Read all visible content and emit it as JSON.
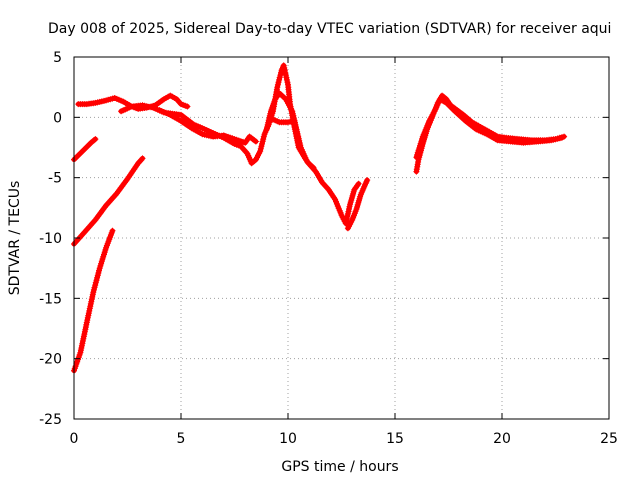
{
  "chart_data": {
    "type": "scatter",
    "title": "Day 008 of 2025, Sidereal Day-to-day VTEC variation (SDTVAR) for receiver aqui",
    "xlabel": "GPS time / hours",
    "ylabel": "SDTVAR / TECUs",
    "xlim": [
      0,
      25
    ],
    "ylim": [
      -25,
      5
    ],
    "xticks": [
      0,
      5,
      10,
      15,
      20,
      25
    ],
    "yticks": [
      -25,
      -20,
      -15,
      -10,
      -5,
      0,
      5
    ],
    "xtick_labels": [
      "0",
      "5",
      "10",
      "15",
      "20",
      "25"
    ],
    "ytick_labels": [
      "-25",
      "-20",
      "-15",
      "-10",
      "-5",
      "0",
      "5"
    ],
    "grid": true,
    "marker": "+",
    "series": [
      {
        "name": "SDTVAR",
        "color": "#ff0000",
        "tracks": [
          [
            [
              0,
              -3.5
            ],
            [
              0.4,
              -2.8
            ],
            [
              0.8,
              -2.1
            ],
            [
              1.0,
              -1.8
            ]
          ],
          [
            [
              0,
              -10.5
            ],
            [
              0.5,
              -9.5
            ],
            [
              1.0,
              -8.5
            ],
            [
              1.5,
              -7.3
            ],
            [
              2.0,
              -6.3
            ],
            [
              2.5,
              -5.1
            ],
            [
              3.0,
              -3.8
            ],
            [
              3.2,
              -3.4
            ]
          ],
          [
            [
              0,
              -21.0
            ],
            [
              0.3,
              -19.5
            ],
            [
              0.6,
              -17.0
            ],
            [
              0.9,
              -14.5
            ],
            [
              1.2,
              -12.5
            ],
            [
              1.5,
              -10.8
            ],
            [
              1.8,
              -9.4
            ]
          ],
          [
            [
              0.2,
              1.1
            ],
            [
              0.6,
              1.1
            ],
            [
              1.0,
              1.2
            ],
            [
              1.5,
              1.4
            ],
            [
              1.9,
              1.6
            ],
            [
              2.3,
              1.3
            ],
            [
              2.7,
              0.9
            ],
            [
              3.0,
              0.7
            ],
            [
              3.4,
              0.8
            ],
            [
              3.8,
              1.0
            ],
            [
              4.2,
              1.5
            ],
            [
              4.5,
              1.8
            ],
            [
              4.8,
              1.5
            ],
            [
              5.0,
              1.1
            ],
            [
              5.3,
              0.9
            ]
          ],
          [
            [
              2.2,
              0.5
            ],
            [
              2.7,
              0.9
            ],
            [
              3.2,
              1.0
            ],
            [
              3.7,
              0.8
            ],
            [
              4.2,
              0.4
            ],
            [
              4.6,
              0.3
            ],
            [
              5.0,
              0.2
            ],
            [
              5.6,
              -0.6
            ],
            [
              6.0,
              -0.9
            ],
            [
              6.5,
              -1.3
            ],
            [
              7.0,
              -1.7
            ],
            [
              7.5,
              -2.2
            ],
            [
              7.8,
              -2.4
            ],
            [
              8.1,
              -3.0
            ],
            [
              8.3,
              -3.8
            ],
            [
              8.5,
              -3.5
            ],
            [
              8.7,
              -2.8
            ],
            [
              8.9,
              -1.4
            ],
            [
              9.1,
              -0.6
            ],
            [
              9.3,
              0.5
            ],
            [
              9.5,
              2.5
            ],
            [
              9.7,
              3.9
            ],
            [
              9.8,
              4.3
            ],
            [
              10.0,
              2.7
            ],
            [
              10.1,
              1.1
            ],
            [
              10.3,
              -0.8
            ],
            [
              10.5,
              -2.5
            ],
            [
              10.8,
              -3.4
            ],
            [
              11.0,
              -3.9
            ],
            [
              11.3,
              -4.5
            ],
            [
              11.6,
              -5.4
            ],
            [
              11.9,
              -6.0
            ],
            [
              12.2,
              -6.8
            ],
            [
              12.5,
              -8.1
            ],
            [
              12.7,
              -8.8
            ],
            [
              12.9,
              -7.2
            ],
            [
              13.1,
              -6.0
            ],
            [
              13.3,
              -5.5
            ]
          ],
          [
            [
              9.0,
              -1.0
            ],
            [
              9.2,
              0.5
            ],
            [
              9.4,
              1.5
            ],
            [
              9.6,
              2.0
            ],
            [
              9.9,
              1.5
            ],
            [
              10.2,
              0.5
            ],
            [
              10.4,
              -1.0
            ],
            [
              10.6,
              -2.5
            ],
            [
              10.9,
              -3.7
            ],
            [
              11.2,
              -4.2
            ]
          ],
          [
            [
              4.0,
              0.6
            ],
            [
              4.5,
              0.2
            ],
            [
              5.0,
              -0.3
            ],
            [
              5.5,
              -0.9
            ],
            [
              6.0,
              -1.4
            ],
            [
              6.5,
              -1.6
            ],
            [
              7.0,
              -1.5
            ],
            [
              7.5,
              -1.8
            ],
            [
              8.0,
              -2.1
            ],
            [
              8.2,
              -1.6
            ],
            [
              8.5,
              -2.0
            ]
          ],
          [
            [
              9.2,
              -0.1
            ],
            [
              9.6,
              -0.4
            ],
            [
              10.0,
              -0.4
            ],
            [
              10.3,
              -0.3
            ]
          ],
          [
            [
              12.8,
              -9.2
            ],
            [
              13.0,
              -8.5
            ],
            [
              13.2,
              -7.6
            ],
            [
              13.4,
              -6.4
            ],
            [
              13.6,
              -5.6
            ],
            [
              13.7,
              -5.2
            ]
          ],
          [
            [
              16.0,
              -4.5
            ],
            [
              16.1,
              -3.5
            ],
            [
              16.3,
              -2.2
            ],
            [
              16.5,
              -1.0
            ],
            [
              16.8,
              0.3
            ],
            [
              17.0,
              1.2
            ],
            [
              17.2,
              1.8
            ],
            [
              17.4,
              1.5
            ],
            [
              17.6,
              1.0
            ],
            [
              17.9,
              0.6
            ],
            [
              18.2,
              0.2
            ],
            [
              18.6,
              -0.4
            ],
            [
              19.0,
              -0.8
            ],
            [
              19.4,
              -1.2
            ],
            [
              19.8,
              -1.6
            ],
            [
              20.2,
              -1.7
            ],
            [
              20.8,
              -1.8
            ],
            [
              21.4,
              -1.9
            ],
            [
              22.0,
              -1.9
            ],
            [
              22.5,
              -1.8
            ],
            [
              22.9,
              -1.6
            ]
          ],
          [
            [
              16.0,
              -3.3
            ],
            [
              16.3,
              -1.6
            ],
            [
              16.6,
              -0.3
            ],
            [
              16.9,
              0.7
            ],
            [
              17.1,
              1.5
            ],
            [
              17.4,
              1.2
            ],
            [
              17.8,
              0.5
            ],
            [
              18.3,
              -0.3
            ],
            [
              18.8,
              -1.0
            ],
            [
              19.3,
              -1.4
            ],
            [
              19.8,
              -1.9
            ],
            [
              20.4,
              -2.0
            ],
            [
              21.0,
              -2.1
            ],
            [
              21.7,
              -2.0
            ],
            [
              22.3,
              -1.9
            ],
            [
              22.8,
              -1.7
            ]
          ]
        ]
      }
    ]
  }
}
